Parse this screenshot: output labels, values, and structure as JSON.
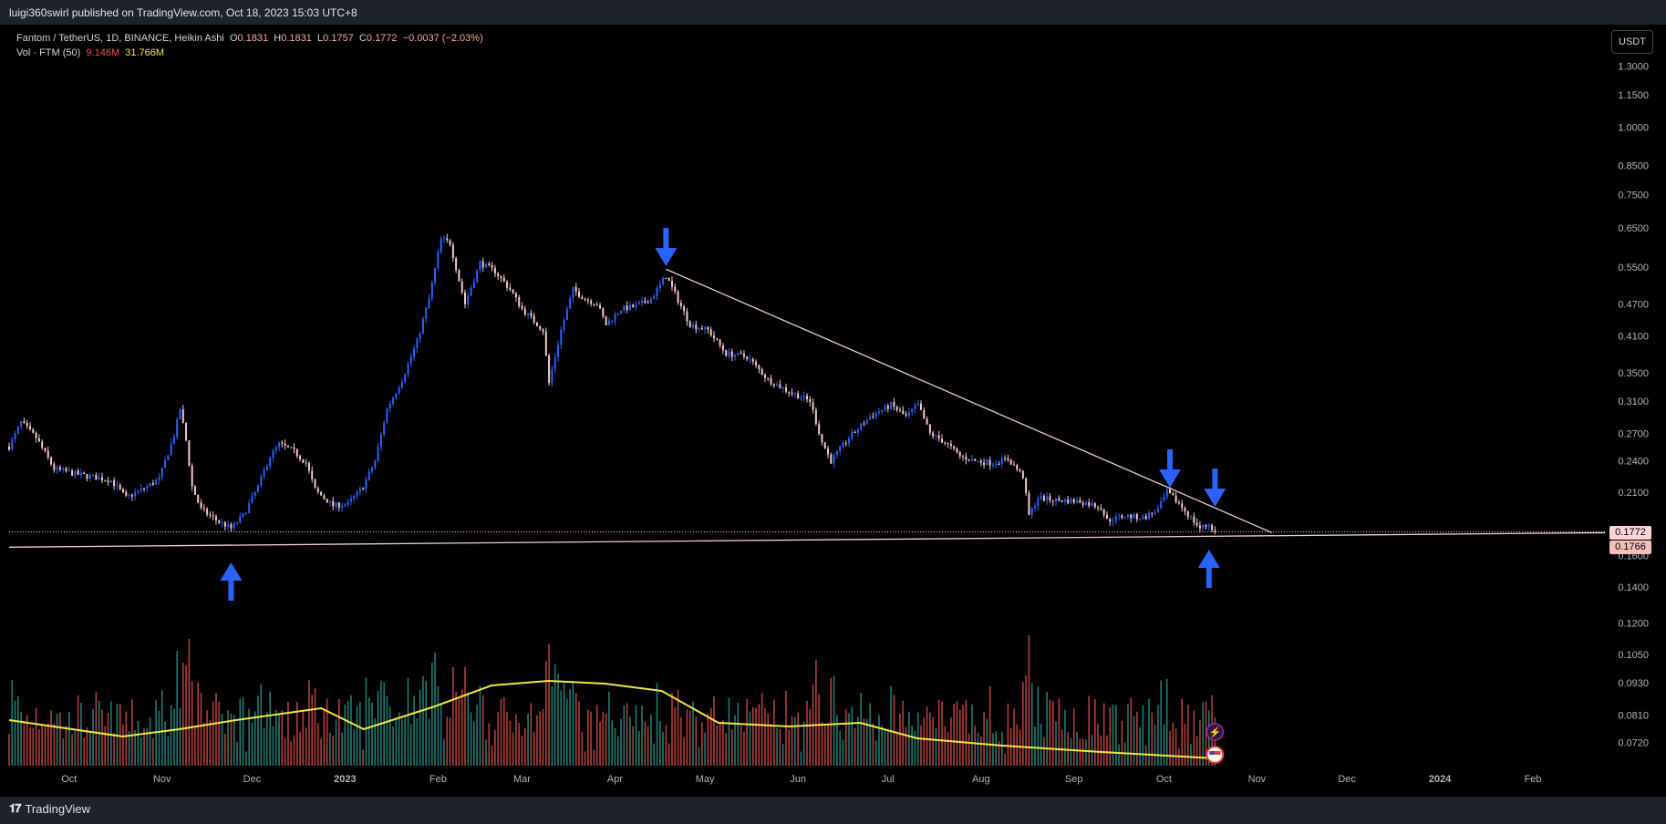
{
  "header": {
    "published": "luigi360swirl published on TradingView.com, Oct 18, 2023 15:03 UTC+8"
  },
  "legend": {
    "title": "Fantom / TetherUS, 1D, BINANCE, Heikin Ashi",
    "o_label": "O",
    "o_value": "0.1831",
    "h_label": "H",
    "h_value": "0.1831",
    "l_label": "L",
    "l_value": "0.1757",
    "c_label": "C",
    "c_value": "0.1772",
    "change": "−0.0037 (−2.03%)",
    "vol_title": "Vol · FTM (50)",
    "vol_value": "9.146M",
    "vol_ma_value": "31.766M"
  },
  "controls": {
    "currency_button": "USDT"
  },
  "price_labels": {
    "last_price": "0.1772",
    "line_price": "0.1766"
  },
  "footer": {
    "brand": "TradingView"
  },
  "colors": {
    "up": "#2962ff",
    "down": "#f8c8c8",
    "trendline": "#f0cfcf",
    "vol_up": "#26a69a",
    "vol_down": "#ef5350",
    "vol_ma": "#f0e442",
    "arrow": "#2962ff"
  },
  "chart_data": {
    "type": "candlestick",
    "symbol": "Fantom / TetherUS",
    "exchange": "BINANCE",
    "interval": "1D",
    "style": "Heikin Ashi",
    "y_scale": "log",
    "y_ticks": [
      "1.3000",
      "1.1500",
      "1.0000",
      "0.8500",
      "0.7500",
      "0.6500",
      "0.5500",
      "0.4700",
      "0.4100",
      "0.3500",
      "0.3100",
      "0.2700",
      "0.2400",
      "0.2100",
      "0.1600",
      "0.1400",
      "0.1200",
      "0.1050",
      "0.0930",
      "0.0810",
      "0.0720"
    ],
    "x_ticks": [
      "Oct",
      "Nov",
      "Dec",
      "2023",
      "Feb",
      "Mar",
      "Apr",
      "May",
      "Jun",
      "Jul",
      "Aug",
      "Sep",
      "Oct",
      "Nov",
      "Dec",
      "2024",
      "Feb"
    ],
    "x_range": [
      "2022-09-11",
      "2024-02-25"
    ],
    "price_path": [
      [
        "2022-09-11",
        0.255
      ],
      [
        "2022-09-15",
        0.283
      ],
      [
        "2022-09-20",
        0.265
      ],
      [
        "2022-09-26",
        0.232
      ],
      [
        "2022-10-05",
        0.226
      ],
      [
        "2022-10-15",
        0.221
      ],
      [
        "2022-10-20",
        0.205
      ],
      [
        "2022-10-25",
        0.212
      ],
      [
        "2022-10-31",
        0.222
      ],
      [
        "2022-11-05",
        0.268
      ],
      [
        "2022-11-07",
        0.3
      ],
      [
        "2022-11-09",
        0.262
      ],
      [
        "2022-11-11",
        0.215
      ],
      [
        "2022-11-14",
        0.195
      ],
      [
        "2022-11-20",
        0.185
      ],
      [
        "2022-11-24",
        0.18
      ],
      [
        "2022-11-28",
        0.19
      ],
      [
        "2022-12-03",
        0.215
      ],
      [
        "2022-12-07",
        0.245
      ],
      [
        "2022-12-10",
        0.258
      ],
      [
        "2022-12-15",
        0.25
      ],
      [
        "2022-12-19",
        0.238
      ],
      [
        "2022-12-22",
        0.212
      ],
      [
        "2022-12-28",
        0.198
      ],
      [
        "2023-01-02",
        0.2
      ],
      [
        "2023-01-07",
        0.215
      ],
      [
        "2023-01-11",
        0.24
      ],
      [
        "2023-01-15",
        0.3
      ],
      [
        "2023-01-20",
        0.34
      ],
      [
        "2023-01-25",
        0.4
      ],
      [
        "2023-01-29",
        0.48
      ],
      [
        "2023-02-02",
        0.62
      ],
      [
        "2023-02-05",
        0.61
      ],
      [
        "2023-02-08",
        0.52
      ],
      [
        "2023-02-10",
        0.47
      ],
      [
        "2023-02-15",
        0.56
      ],
      [
        "2023-02-20",
        0.54
      ],
      [
        "2023-02-25",
        0.5
      ],
      [
        "2023-03-01",
        0.46
      ],
      [
        "2023-03-08",
        0.42
      ],
      [
        "2023-03-10",
        0.335
      ],
      [
        "2023-03-14",
        0.42
      ],
      [
        "2023-03-18",
        0.5
      ],
      [
        "2023-03-22",
        0.48
      ],
      [
        "2023-03-26",
        0.47
      ],
      [
        "2023-03-29",
        0.43
      ],
      [
        "2023-04-03",
        0.46
      ],
      [
        "2023-04-08",
        0.465
      ],
      [
        "2023-04-13",
        0.48
      ],
      [
        "2023-04-18",
        0.53
      ],
      [
        "2023-04-21",
        0.49
      ],
      [
        "2023-04-26",
        0.43
      ],
      [
        "2023-05-02",
        0.42
      ],
      [
        "2023-05-08",
        0.38
      ],
      [
        "2023-05-15",
        0.375
      ],
      [
        "2023-05-22",
        0.34
      ],
      [
        "2023-05-28",
        0.325
      ],
      [
        "2023-06-05",
        0.31
      ],
      [
        "2023-06-09",
        0.26
      ],
      [
        "2023-06-12",
        0.24
      ],
      [
        "2023-06-18",
        0.265
      ],
      [
        "2023-06-25",
        0.29
      ],
      [
        "2023-07-02",
        0.305
      ],
      [
        "2023-07-07",
        0.29
      ],
      [
        "2023-07-11",
        0.305
      ],
      [
        "2023-07-15",
        0.27
      ],
      [
        "2023-07-20",
        0.26
      ],
      [
        "2023-07-25",
        0.245
      ],
      [
        "2023-07-30",
        0.24
      ],
      [
        "2023-08-05",
        0.238
      ],
      [
        "2023-08-10",
        0.242
      ],
      [
        "2023-08-15",
        0.225
      ],
      [
        "2023-08-17",
        0.19
      ],
      [
        "2023-08-20",
        0.205
      ],
      [
        "2023-08-26",
        0.203
      ],
      [
        "2023-09-03",
        0.202
      ],
      [
        "2023-09-10",
        0.197
      ],
      [
        "2023-09-12",
        0.186
      ],
      [
        "2023-09-18",
        0.19
      ],
      [
        "2023-09-24",
        0.188
      ],
      [
        "2023-09-29",
        0.195
      ],
      [
        "2023-10-02",
        0.21
      ],
      [
        "2023-10-06",
        0.2
      ],
      [
        "2023-10-10",
        0.188
      ],
      [
        "2023-10-13",
        0.18
      ],
      [
        "2023-10-16",
        0.183
      ],
      [
        "2023-10-18",
        0.177
      ]
    ],
    "support_line_y": 0.1766,
    "last_close": 0.1772,
    "volume": {
      "name": "Vol · FTM",
      "ma_length": 50,
      "last": "9.146M",
      "ma_last": "31.766M"
    }
  }
}
